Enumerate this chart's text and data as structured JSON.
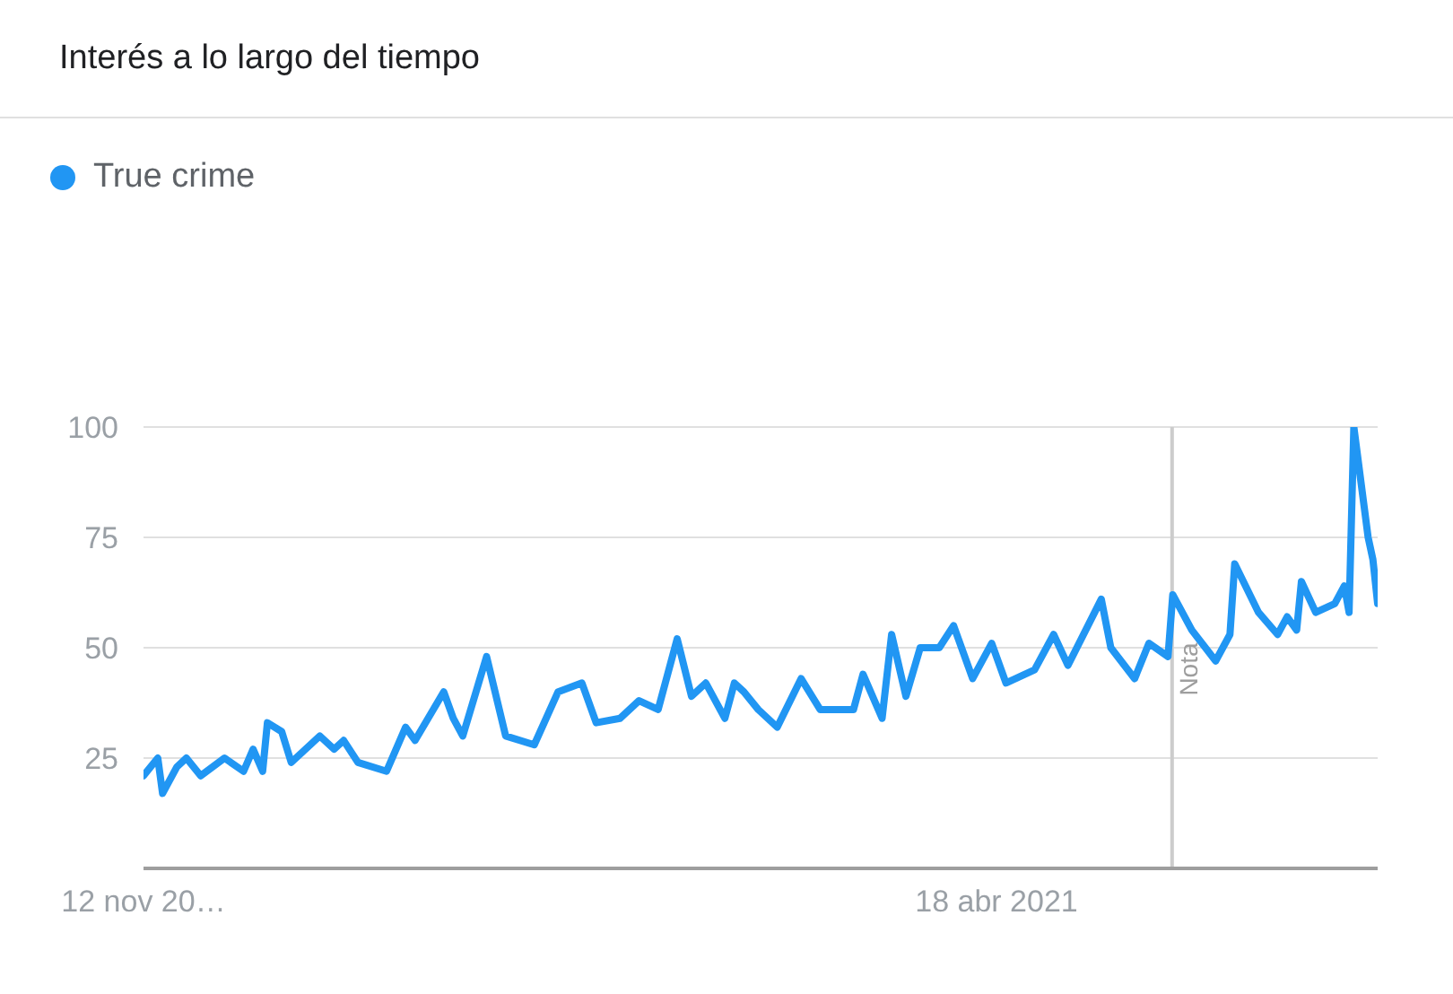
{
  "chart_data": {
    "type": "line",
    "title": "Interés a lo largo del tiempo",
    "x": [
      "2017-11-12",
      "2017-12-03",
      "2017-12-10",
      "2017-12-31",
      "2018-01-14",
      "2018-02-04",
      "2018-03-11",
      "2018-04-08",
      "2018-04-22",
      "2018-05-06",
      "2018-05-13",
      "2018-06-03",
      "2018-06-17",
      "2018-07-29",
      "2018-08-19",
      "2018-09-02",
      "2018-09-23",
      "2018-11-04",
      "2018-12-02",
      "2018-12-16",
      "2019-01-27",
      "2019-02-10",
      "2019-02-24",
      "2019-03-31",
      "2019-04-28",
      "2019-06-09",
      "2019-07-14",
      "2019-08-18",
      "2019-09-08",
      "2019-10-13",
      "2019-11-10",
      "2019-12-08",
      "2020-01-05",
      "2020-01-26",
      "2020-02-16",
      "2020-03-15",
      "2020-03-29",
      "2020-04-12",
      "2020-05-03",
      "2020-05-31",
      "2020-07-05",
      "2020-08-02",
      "2020-09-20",
      "2020-10-04",
      "2020-11-01",
      "2020-11-15",
      "2020-12-06",
      "2020-12-27",
      "2021-01-24",
      "2021-02-14",
      "2021-03-14",
      "2021-04-11",
      "2021-05-02",
      "2021-06-13",
      "2021-07-11",
      "2021-08-01",
      "2021-09-19",
      "2021-10-03",
      "2021-11-07",
      "2021-11-28",
      "2021-12-26",
      "2022-01-02",
      "2022-01-30",
      "2022-03-06",
      "2022-03-27",
      "2022-04-03",
      "2022-05-08",
      "2022-06-05",
      "2022-06-19",
      "2022-07-03",
      "2022-07-10",
      "2022-07-31",
      "2022-08-28",
      "2022-09-11",
      "2022-09-18",
      "2022-09-25",
      "2022-10-16",
      "2022-10-23",
      "2022-10-30"
    ],
    "series": [
      {
        "name": "True crime",
        "color": "#2196f3",
        "values": [
          21,
          25,
          17,
          23,
          25,
          21,
          25,
          22,
          27,
          22,
          33,
          31,
          24,
          30,
          27,
          29,
          24,
          22,
          32,
          29,
          40,
          34,
          30,
          48,
          30,
          28,
          40,
          42,
          33,
          34,
          38,
          36,
          52,
          39,
          42,
          34,
          42,
          40,
          36,
          32,
          43,
          36,
          36,
          44,
          34,
          53,
          39,
          50,
          50,
          55,
          43,
          51,
          42,
          45,
          53,
          46,
          61,
          50,
          43,
          51,
          48,
          62,
          54,
          47,
          53,
          69,
          58,
          53,
          57,
          54,
          65,
          58,
          60,
          64,
          58,
          100,
          75,
          70,
          60
        ]
      }
    ],
    "xlim": [
      "2017-11-12",
      "2022-10-30"
    ],
    "xticks": [
      {
        "value": "2017-11-12",
        "label": "12 nov 20…"
      },
      {
        "value": "2021-04-18",
        "label": "18 abr 2021"
      }
    ],
    "ylim": [
      0,
      100
    ],
    "yticks": [
      25,
      50,
      75,
      100
    ],
    "grid": "y",
    "legend": "top left",
    "marker": "none",
    "ref_lines": [
      {
        "axis": "x",
        "value": "2022-01-01",
        "label": "Nota",
        "color": "#cccccc"
      }
    ]
  }
}
